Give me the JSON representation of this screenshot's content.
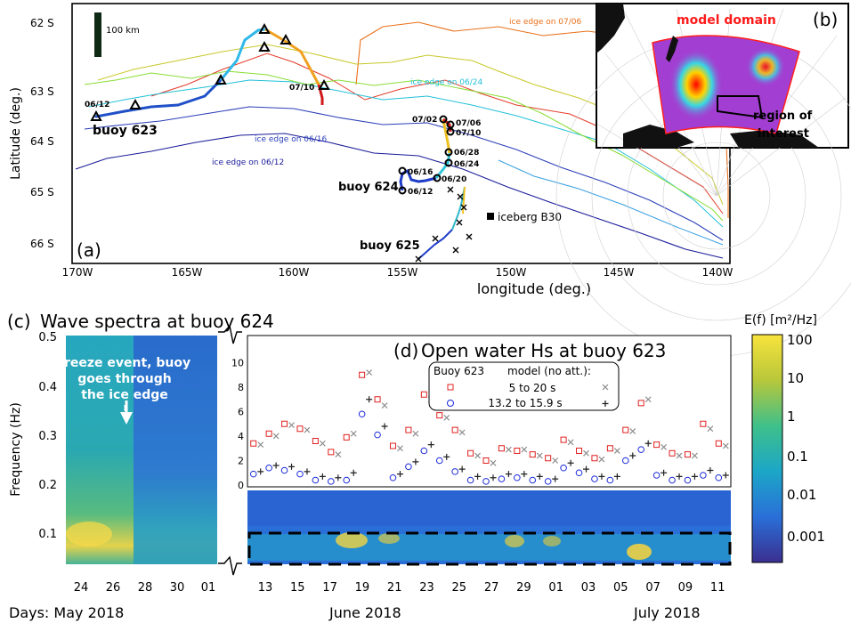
{
  "chart_data": [
    {
      "panel": "(a)",
      "type": "map",
      "xlabel": "longitude (deg.)",
      "ylabel": "Latitude (deg.)",
      "xticks": [
        "170W",
        "165W",
        "160W",
        "155W",
        "150W",
        "145W",
        "140W"
      ],
      "yticks": [
        "62 S",
        "63 S",
        "64 S",
        "65 S",
        "66 S"
      ],
      "scale_bar": "100 km",
      "ice_edge_labels": [
        {
          "text": "ice edge on 07/06",
          "color": "#e8701a"
        },
        {
          "text": "ice edge on 06/24",
          "color": "#22c0d8"
        },
        {
          "text": "ice edge on 06/16",
          "color": "#2b3fb8"
        },
        {
          "text": "ice edge on 06/12",
          "color": "#1a1a9a"
        }
      ],
      "buoys": {
        "b623": {
          "label": "buoy 623",
          "dates": [
            "06/12",
            "07/10"
          ]
        },
        "b624": {
          "label": "buoy 624",
          "dates": [
            "07/02",
            "07/06",
            "07/10",
            "06/28",
            "06/24",
            "06/20",
            "06/16",
            "06/12"
          ]
        },
        "b625": {
          "label": "buoy 625"
        }
      },
      "iceberg": "iceberg B30"
    },
    {
      "panel": "(b)",
      "type": "map",
      "labels": {
        "domain": "model domain",
        "region": "region of interest"
      }
    },
    {
      "panel": "(c)",
      "type": "heatmap",
      "title": "Wave spectra at buoy 624",
      "ylabel": "Frequency (Hz)",
      "yticks": [
        "0.1",
        "0.2",
        "0.3",
        "0.4",
        "0.5"
      ],
      "xticks": [
        "24",
        "26",
        "28",
        "30",
        "01"
      ],
      "xcaption": "Days: May 2018",
      "annotation": "freeze event, buoy goes through the ice edge"
    },
    {
      "panel": "(d)",
      "type": "scatter",
      "title": "Open water Hs at buoy 623",
      "yticks": [
        "0",
        "2",
        "4",
        "6",
        "8",
        "10"
      ],
      "xticks": [
        "13",
        "15",
        "17",
        "19",
        "21",
        "23",
        "25",
        "27",
        "29",
        "01",
        "03",
        "05",
        "07",
        "09",
        "11"
      ],
      "month_labels": [
        "June  2018",
        "July 2018"
      ],
      "legend": {
        "header_buoy": "Buoy 623",
        "header_model": "model (no att.):",
        "rows": [
          "5 to 20 s",
          "13.2 to 15.9 s"
        ]
      },
      "days": [
        1,
        2,
        3,
        4,
        5,
        6,
        7,
        8,
        9,
        10,
        11,
        12,
        13,
        14,
        15,
        16,
        17,
        18,
        19,
        20,
        21,
        22,
        23,
        24,
        25,
        26,
        27,
        28,
        29,
        30,
        31
      ],
      "series": [
        {
          "name": "Buoy 623 5 to 20 s",
          "marker": "square",
          "color": "#e02020",
          "values": [
            3.4,
            4.2,
            5.0,
            4.6,
            3.6,
            2.7,
            3.9,
            9.0,
            7.0,
            3.2,
            4.5,
            7.4,
            5.7,
            4.5,
            2.6,
            2.0,
            3.0,
            2.8,
            2.5,
            2.2,
            3.7,
            2.8,
            2.2,
            3.0,
            4.5,
            6.7,
            3.3,
            2.6,
            2.5,
            5.0,
            3.4
          ]
        },
        {
          "name": "model 5 to 20 s",
          "marker": "x",
          "color": "#888888",
          "values": [
            3.3,
            4.0,
            4.9,
            4.5,
            3.4,
            2.5,
            4.2,
            9.2,
            6.5,
            3.0,
            4.2,
            7.0,
            5.5,
            4.3,
            2.4,
            1.8,
            2.9,
            2.9,
            2.4,
            2.0,
            3.5,
            2.6,
            2.1,
            2.8,
            4.4,
            7.0,
            3.1,
            2.4,
            2.4,
            4.6,
            3.2
          ]
        },
        {
          "name": "Buoy 623 13.2 to 15.9 s",
          "marker": "circle",
          "color": "#1a2ad8",
          "values": [
            0.9,
            1.4,
            1.2,
            0.9,
            0.4,
            0.3,
            0.4,
            5.8,
            4.1,
            0.6,
            1.5,
            2.8,
            2.0,
            1.1,
            0.4,
            0.3,
            0.5,
            0.6,
            0.4,
            0.3,
            1.4,
            1.0,
            0.5,
            0.4,
            2.0,
            2.9,
            0.8,
            0.4,
            0.4,
            0.8,
            0.6
          ]
        },
        {
          "name": "model 13.2 to 15.9 s",
          "marker": "plus",
          "color": "#222222",
          "values": [
            1.1,
            1.6,
            1.5,
            1.1,
            0.7,
            0.6,
            1.0,
            7.0,
            4.8,
            0.9,
            1.9,
            3.3,
            2.3,
            1.3,
            0.7,
            0.6,
            0.9,
            0.9,
            0.7,
            0.5,
            1.8,
            1.3,
            0.7,
            0.7,
            2.4,
            3.4,
            1.0,
            0.7,
            0.7,
            1.2,
            0.8
          ]
        }
      ]
    },
    {
      "panel": "colorbar",
      "type": "colorbar",
      "label": "E(f) [m²/Hz]",
      "ticks": [
        "100",
        "10",
        "1",
        "0.1",
        "0.01",
        "0.001"
      ]
    }
  ]
}
